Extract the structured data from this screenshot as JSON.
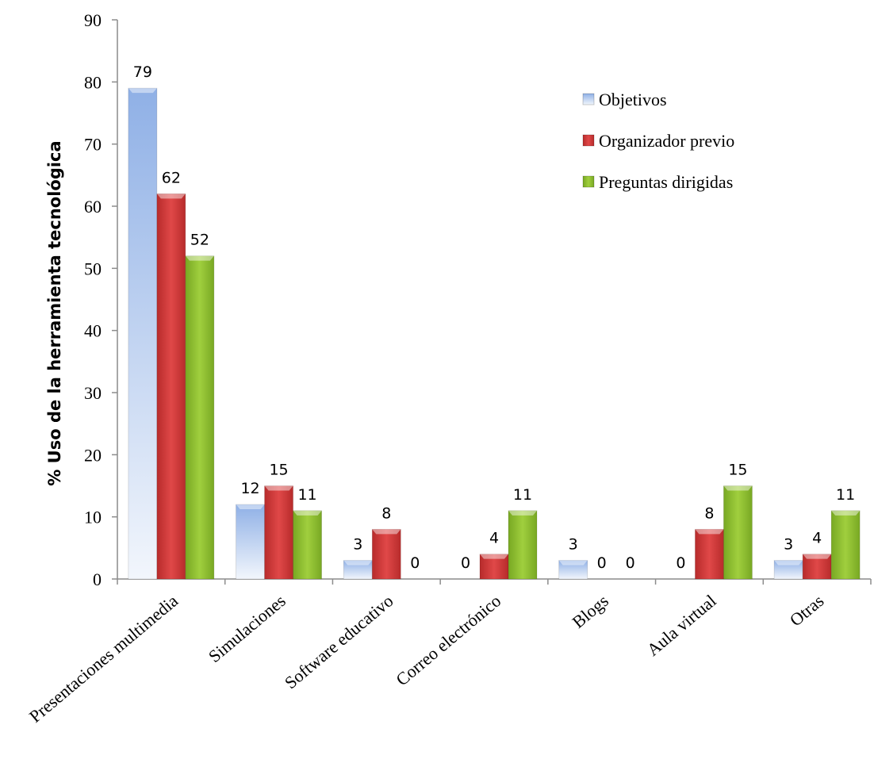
{
  "chart_data": {
    "type": "bar",
    "title": "",
    "xlabel": "",
    "ylabel": "% Uso de la herramienta tecnológica",
    "ylim": [
      0,
      90
    ],
    "yticks": [
      "0",
      "10",
      "20",
      "30",
      "40",
      "50",
      "60",
      "70",
      "80",
      "90"
    ],
    "grid": false,
    "legend_position": "top-right",
    "categories": [
      "Presentaciones multimedia",
      "Simulaciones",
      "Software educativo",
      "Correo electrónico",
      "Blogs",
      "Aula virtual",
      "Otras"
    ],
    "series": [
      {
        "name": "Objetivos",
        "color": "#9DB9E8",
        "values": [
          79,
          12,
          3,
          0,
          3,
          0,
          3
        ]
      },
      {
        "name": "Organizador previo",
        "color": "#D23A3A",
        "values": [
          62,
          15,
          8,
          4,
          0,
          8,
          4
        ]
      },
      {
        "name": "Preguntas dirigidas",
        "color": "#8DBF2F",
        "values": [
          52,
          11,
          0,
          11,
          0,
          15,
          11
        ]
      }
    ]
  }
}
